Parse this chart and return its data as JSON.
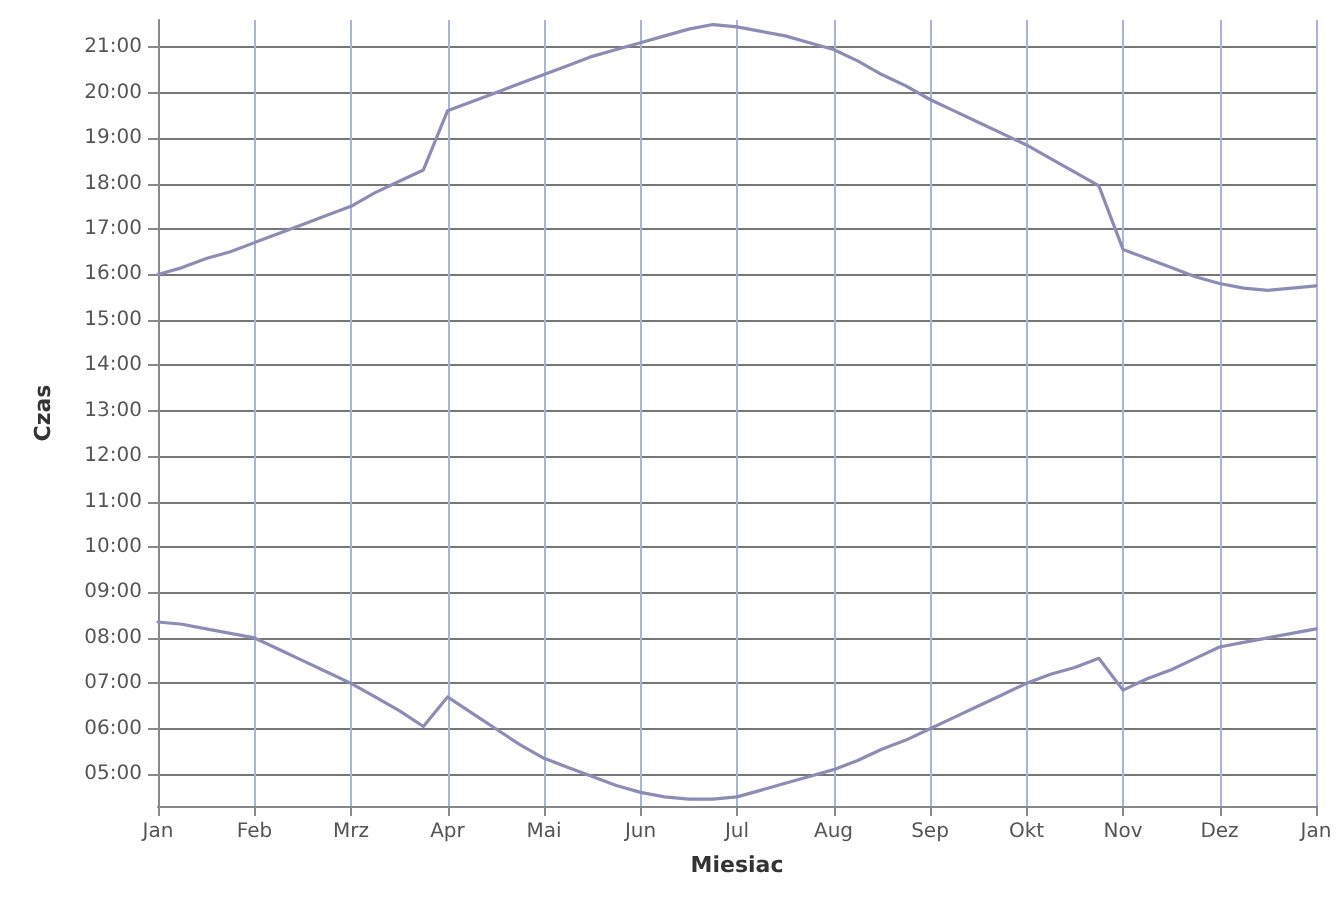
{
  "chart_data": {
    "type": "line",
    "xlabel": "Miesiac",
    "ylabel": "Czas",
    "categories": [
      "Jan",
      null,
      null,
      null,
      "Feb",
      null,
      null,
      null,
      "Mrz",
      null,
      null,
      null,
      "Apr",
      null,
      null,
      null,
      "Mai",
      null,
      null,
      null,
      "Jun",
      null,
      null,
      null,
      "Jul",
      null,
      null,
      null,
      "Aug",
      null,
      null,
      null,
      "Sep",
      null,
      null,
      null,
      "Okt",
      null,
      null,
      null,
      "Nov",
      null,
      null,
      null,
      "Dez",
      null,
      null,
      null,
      "Jan"
    ],
    "series": [
      {
        "color": "#8c8cb4",
        "values": [
          16.0,
          16.15,
          16.35,
          16.5,
          16.7,
          16.9,
          17.1,
          17.3,
          17.5,
          17.8,
          18.05,
          18.3,
          19.6,
          19.8,
          20.0,
          20.2,
          20.4,
          20.6,
          20.8,
          20.95,
          21.1,
          21.25,
          21.4,
          21.5,
          21.45,
          21.35,
          21.25,
          21.1,
          20.95,
          20.7,
          20.4,
          20.15,
          19.85,
          19.6,
          19.35,
          19.1,
          18.85,
          18.55,
          18.25,
          17.95,
          16.55,
          16.35,
          16.15,
          15.95,
          15.8,
          15.7,
          15.65,
          15.7,
          15.75
        ]
      },
      {
        "color": "#8c8cb4",
        "values": [
          8.35,
          8.3,
          8.2,
          8.1,
          8.0,
          7.75,
          7.5,
          7.25,
          7.0,
          6.7,
          6.4,
          6.05,
          6.7,
          6.35,
          6.0,
          5.65,
          5.35,
          5.15,
          4.95,
          4.75,
          4.6,
          4.5,
          4.45,
          4.45,
          4.5,
          4.65,
          4.8,
          4.95,
          5.1,
          5.3,
          5.55,
          5.75,
          6.0,
          6.25,
          6.5,
          6.75,
          7.0,
          7.2,
          7.35,
          7.55,
          6.85,
          7.1,
          7.3,
          7.55,
          7.8,
          7.9,
          8.0,
          8.1,
          8.2
        ]
      }
    ],
    "ylim": [
      4.3,
      21.6
    ],
    "yticks": [
      {
        "value": 5,
        "label": "05:00"
      },
      {
        "value": 6,
        "label": "06:00"
      },
      {
        "value": 7,
        "label": "07:00"
      },
      {
        "value": 8,
        "label": "08:00"
      },
      {
        "value": 9,
        "label": "09:00"
      },
      {
        "value": 10,
        "label": "10:00"
      },
      {
        "value": 11,
        "label": "11:00"
      },
      {
        "value": 12,
        "label": "12:00"
      },
      {
        "value": 13,
        "label": "13:00"
      },
      {
        "value": 14,
        "label": "14:00"
      },
      {
        "value": 15,
        "label": "15:00"
      },
      {
        "value": 16,
        "label": "16:00"
      },
      {
        "value": 17,
        "label": "17:00"
      },
      {
        "value": 18,
        "label": "18:00"
      },
      {
        "value": 19,
        "label": "19:00"
      },
      {
        "value": 20,
        "label": "20:00"
      },
      {
        "value": 21,
        "label": "21:00"
      }
    ],
    "grid": true,
    "marker": "none",
    "line_style": "solid"
  }
}
